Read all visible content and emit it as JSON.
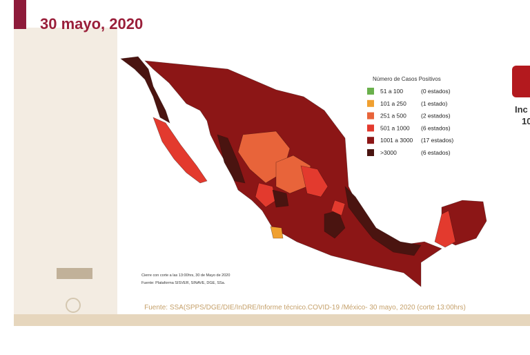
{
  "header": {
    "date": "30 mayo, 2020"
  },
  "legend": {
    "title": "Número de Casos Positivos",
    "items": [
      {
        "range": "51 a 100",
        "count": "(0 estados)",
        "color": "#6ab04c"
      },
      {
        "range": "101 a 250",
        "count": "(1 estado)",
        "color": "#f0a030"
      },
      {
        "range": "251 a 500",
        "count": "(2 estados)",
        "color": "#e8643a"
      },
      {
        "range": "501 a 1000",
        "count": "(6 estados)",
        "color": "#e33a2e"
      },
      {
        "range": "1001 a 3000",
        "count": "(17 estados)",
        "color": "#8c1616"
      },
      {
        "range": ">3000",
        "count": "(6 estados)",
        "color": "#4a1410"
      }
    ]
  },
  "map": {
    "notes": [
      "Cierre con corte a las 13:00hrs, 30 de Mayo de 2020",
      "Fuente: Plataforma SISVER, SINAVE, DGE, SSa."
    ]
  },
  "footer": {
    "source": "Fuente: SSA(SPPS/DGE/DIE/InDRE/Informe técnico.COVID-19 /México- 30 mayo, 2020 (corte 13:00hrs)"
  },
  "side_panel": {
    "texts": [
      "Inc",
      "10"
    ]
  }
}
